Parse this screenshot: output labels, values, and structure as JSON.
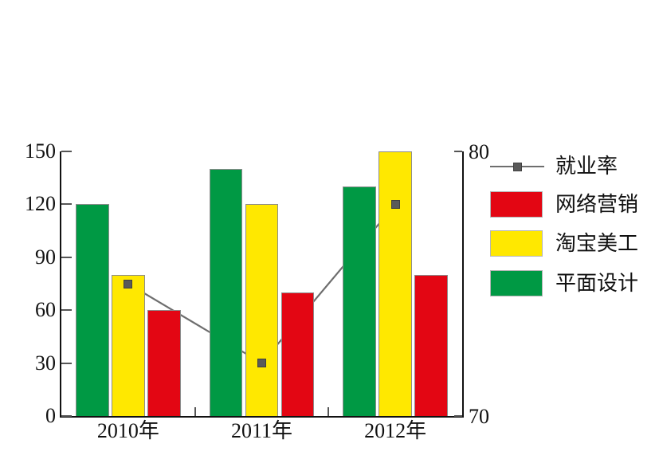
{
  "chart_data": {
    "type": "bar",
    "subtype": "grouped-bars-with-line",
    "title": "",
    "categories": [
      "2010年",
      "2011年",
      "2012年"
    ],
    "series": [
      {
        "id": "employment-rate",
        "name": "就业率",
        "type": "line",
        "axis": "right",
        "values": [
          75,
          72,
          78
        ],
        "color": "#6e6e6e",
        "marker_color": "#5a5a5a"
      },
      {
        "id": "network-marketing",
        "name": "网络营销",
        "type": "bar",
        "axis": "left",
        "values": [
          60,
          70,
          80
        ],
        "color": "#e30613"
      },
      {
        "id": "taobao-art",
        "name": "淘宝美工",
        "type": "bar",
        "axis": "left",
        "values": [
          80,
          120,
          150
        ],
        "color": "#ffe800"
      },
      {
        "id": "graphic-design",
        "name": "平面设计",
        "type": "bar",
        "axis": "left",
        "values": [
          120,
          140,
          130
        ],
        "color": "#009944"
      }
    ],
    "left_axis": {
      "min": 0,
      "max": 150,
      "ticks": [
        0,
        30,
        60,
        90,
        120,
        150
      ]
    },
    "right_axis": {
      "min": 70,
      "max": 80,
      "ticks": [
        70,
        80
      ]
    },
    "legend_position": "right",
    "grid": false,
    "background": "#ffffff"
  },
  "legend": {
    "items": [
      {
        "label": "就业率"
      },
      {
        "label": "网络营销"
      },
      {
        "label": "淘宝美工"
      },
      {
        "label": "平面设计"
      }
    ]
  }
}
